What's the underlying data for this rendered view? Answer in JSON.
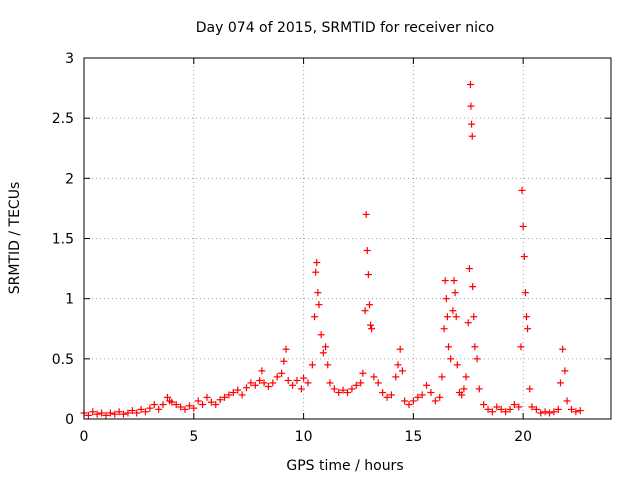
{
  "chart_data": {
    "type": "scatter",
    "title": "Day 074 of 2015, SRMTID for receiver nico",
    "xlabel": "GPS time / hours",
    "ylabel": "SRMTID / TECUs",
    "xlim": [
      0,
      24
    ],
    "ylim": [
      0,
      3
    ],
    "xticks": [
      0,
      5,
      10,
      15,
      20
    ],
    "yticks": [
      0,
      0.5,
      1,
      1.5,
      2,
      2.5,
      3
    ],
    "xtick_labels": [
      "0",
      "5",
      "10",
      "15",
      "20"
    ],
    "ytick_labels": [
      "0",
      "0.5",
      "1",
      "1.5",
      "2",
      "2.5",
      "3"
    ],
    "grid": true,
    "marker": "+",
    "series": [
      {
        "name": "SRMTID",
        "color": "#ff0000",
        "points": [
          [
            0.0,
            0.05
          ],
          [
            0.2,
            0.03
          ],
          [
            0.4,
            0.06
          ],
          [
            0.6,
            0.04
          ],
          [
            0.8,
            0.05
          ],
          [
            1.0,
            0.03
          ],
          [
            1.2,
            0.05
          ],
          [
            1.4,
            0.04
          ],
          [
            1.6,
            0.06
          ],
          [
            1.8,
            0.04
          ],
          [
            2.0,
            0.05
          ],
          [
            2.2,
            0.07
          ],
          [
            2.4,
            0.05
          ],
          [
            2.6,
            0.08
          ],
          [
            2.8,
            0.06
          ],
          [
            3.0,
            0.09
          ],
          [
            3.2,
            0.12
          ],
          [
            3.4,
            0.08
          ],
          [
            3.6,
            0.12
          ],
          [
            3.8,
            0.18
          ],
          [
            3.9,
            0.15
          ],
          [
            4.0,
            0.14
          ],
          [
            4.2,
            0.12
          ],
          [
            4.4,
            0.1
          ],
          [
            4.6,
            0.08
          ],
          [
            4.8,
            0.11
          ],
          [
            5.0,
            0.09
          ],
          [
            5.2,
            0.15
          ],
          [
            5.4,
            0.12
          ],
          [
            5.6,
            0.18
          ],
          [
            5.8,
            0.14
          ],
          [
            6.0,
            0.12
          ],
          [
            6.2,
            0.16
          ],
          [
            6.4,
            0.18
          ],
          [
            6.6,
            0.2
          ],
          [
            6.8,
            0.22
          ],
          [
            7.0,
            0.24
          ],
          [
            7.2,
            0.2
          ],
          [
            7.4,
            0.26
          ],
          [
            7.6,
            0.3
          ],
          [
            7.8,
            0.28
          ],
          [
            8.0,
            0.32
          ],
          [
            8.1,
            0.4
          ],
          [
            8.2,
            0.3
          ],
          [
            8.4,
            0.27
          ],
          [
            8.6,
            0.3
          ],
          [
            8.8,
            0.35
          ],
          [
            9.0,
            0.38
          ],
          [
            9.1,
            0.48
          ],
          [
            9.2,
            0.58
          ],
          [
            9.3,
            0.32
          ],
          [
            9.5,
            0.28
          ],
          [
            9.7,
            0.32
          ],
          [
            9.9,
            0.25
          ],
          [
            10.0,
            0.34
          ],
          [
            10.2,
            0.3
          ],
          [
            10.4,
            0.45
          ],
          [
            10.5,
            0.85
          ],
          [
            10.55,
            1.22
          ],
          [
            10.6,
            1.3
          ],
          [
            10.65,
            1.05
          ],
          [
            10.7,
            0.95
          ],
          [
            10.8,
            0.7
          ],
          [
            10.9,
            0.55
          ],
          [
            11.0,
            0.6
          ],
          [
            11.1,
            0.45
          ],
          [
            11.2,
            0.3
          ],
          [
            11.4,
            0.25
          ],
          [
            11.6,
            0.22
          ],
          [
            11.8,
            0.24
          ],
          [
            12.0,
            0.22
          ],
          [
            12.2,
            0.25
          ],
          [
            12.4,
            0.28
          ],
          [
            12.6,
            0.3
          ],
          [
            12.7,
            0.38
          ],
          [
            12.8,
            0.9
          ],
          [
            12.85,
            1.7
          ],
          [
            12.9,
            1.4
          ],
          [
            12.95,
            1.2
          ],
          [
            13.0,
            0.95
          ],
          [
            13.05,
            0.78
          ],
          [
            13.1,
            0.75
          ],
          [
            13.2,
            0.35
          ],
          [
            13.4,
            0.3
          ],
          [
            13.6,
            0.22
          ],
          [
            13.8,
            0.18
          ],
          [
            14.0,
            0.2
          ],
          [
            14.2,
            0.35
          ],
          [
            14.3,
            0.45
          ],
          [
            14.4,
            0.58
          ],
          [
            14.5,
            0.4
          ],
          [
            14.6,
            0.15
          ],
          [
            14.8,
            0.12
          ],
          [
            15.0,
            0.15
          ],
          [
            15.2,
            0.18
          ],
          [
            15.4,
            0.2
          ],
          [
            15.6,
            0.28
          ],
          [
            15.8,
            0.22
          ],
          [
            16.0,
            0.15
          ],
          [
            16.2,
            0.18
          ],
          [
            16.3,
            0.35
          ],
          [
            16.4,
            0.75
          ],
          [
            16.45,
            1.15
          ],
          [
            16.5,
            1.0
          ],
          [
            16.55,
            0.85
          ],
          [
            16.6,
            0.6
          ],
          [
            16.7,
            0.5
          ],
          [
            16.8,
            0.9
          ],
          [
            16.85,
            1.15
          ],
          [
            16.9,
            1.05
          ],
          [
            16.95,
            0.85
          ],
          [
            17.0,
            0.45
          ],
          [
            17.1,
            0.22
          ],
          [
            17.2,
            0.2
          ],
          [
            17.3,
            0.25
          ],
          [
            17.4,
            0.35
          ],
          [
            17.5,
            0.8
          ],
          [
            17.55,
            1.25
          ],
          [
            17.6,
            2.78
          ],
          [
            17.62,
            2.6
          ],
          [
            17.65,
            2.45
          ],
          [
            17.68,
            2.35
          ],
          [
            17.7,
            1.1
          ],
          [
            17.75,
            0.85
          ],
          [
            17.8,
            0.6
          ],
          [
            17.9,
            0.5
          ],
          [
            18.0,
            0.25
          ],
          [
            18.2,
            0.12
          ],
          [
            18.4,
            0.08
          ],
          [
            18.6,
            0.06
          ],
          [
            18.8,
            0.1
          ],
          [
            19.0,
            0.08
          ],
          [
            19.2,
            0.06
          ],
          [
            19.4,
            0.08
          ],
          [
            19.6,
            0.12
          ],
          [
            19.8,
            0.1
          ],
          [
            19.9,
            0.6
          ],
          [
            19.95,
            1.9
          ],
          [
            20.0,
            1.6
          ],
          [
            20.05,
            1.35
          ],
          [
            20.1,
            1.05
          ],
          [
            20.15,
            0.85
          ],
          [
            20.2,
            0.75
          ],
          [
            20.3,
            0.25
          ],
          [
            20.4,
            0.1
          ],
          [
            20.6,
            0.08
          ],
          [
            20.8,
            0.05
          ],
          [
            21.0,
            0.06
          ],
          [
            21.2,
            0.05
          ],
          [
            21.4,
            0.06
          ],
          [
            21.6,
            0.08
          ],
          [
            21.7,
            0.3
          ],
          [
            21.8,
            0.58
          ],
          [
            21.9,
            0.4
          ],
          [
            22.0,
            0.15
          ],
          [
            22.2,
            0.08
          ],
          [
            22.4,
            0.06
          ],
          [
            22.6,
            0.07
          ]
        ]
      }
    ]
  }
}
